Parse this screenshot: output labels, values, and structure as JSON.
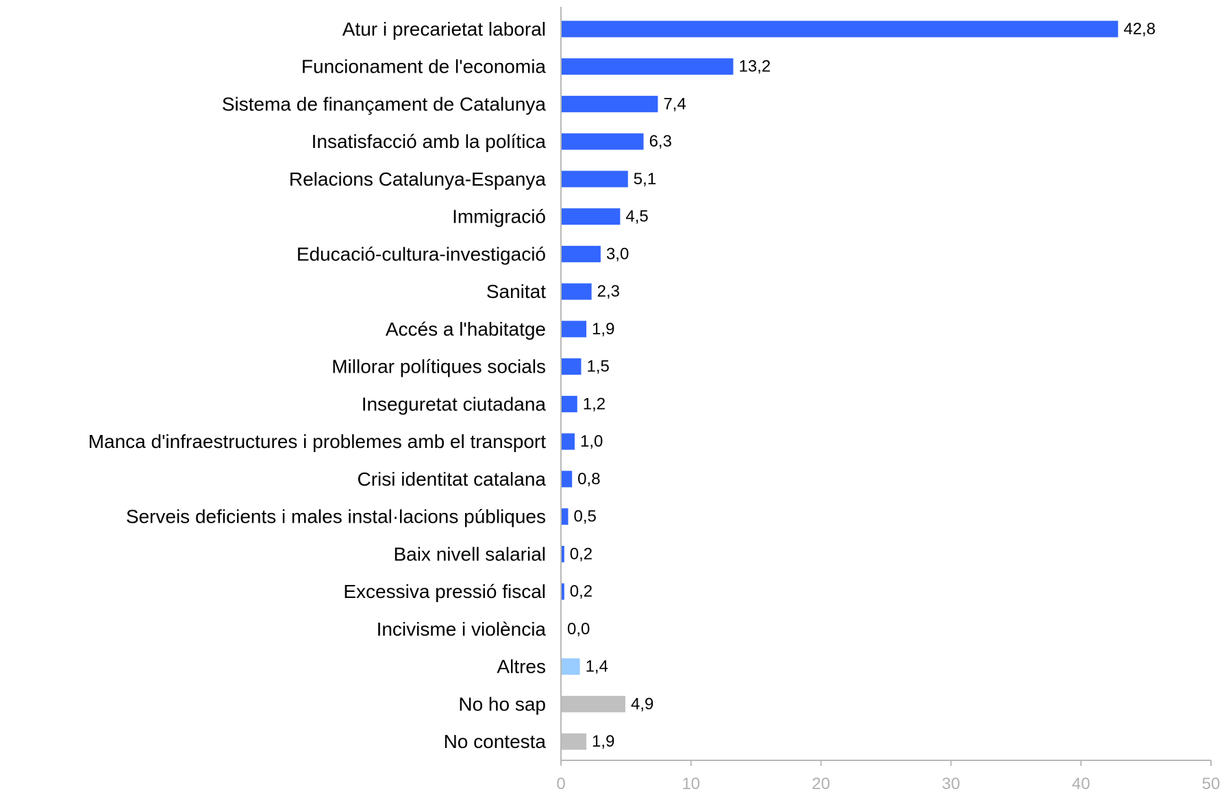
{
  "chart_data": {
    "type": "bar",
    "orientation": "horizontal",
    "categories": [
      "Atur i precarietat laboral",
      "Funcionament de l'economia",
      "Sistema de finançament de Catalunya",
      "Insatisfacció amb la política",
      "Relacions Catalunya-Espanya",
      "Immigració",
      "Educació-cultura-investigació",
      "Sanitat",
      "Accés a l'habitatge",
      "Millorar polítiques socials",
      "Inseguretat ciutadana",
      "Manca d'infraestructures i problemes amb el transport",
      "Crisi identitat catalana",
      "Serveis deficients i males instal·lacions públiques",
      "Baix nivell salarial",
      "Excessiva pressió fiscal",
      "Incivisme i violència",
      "Altres",
      "No ho sap",
      "No contesta"
    ],
    "values": [
      42.8,
      13.2,
      7.4,
      6.3,
      5.1,
      4.5,
      3.0,
      2.3,
      1.9,
      1.5,
      1.2,
      1.0,
      0.8,
      0.5,
      0.2,
      0.2,
      0.0,
      1.4,
      4.9,
      1.9
    ],
    "value_labels": [
      "42,8",
      "13,2",
      "7,4",
      "6,3",
      "5,1",
      "4,5",
      "3,0",
      "2,3",
      "1,9",
      "1,5",
      "1,2",
      "1,0",
      "0,8",
      "0,5",
      "0,2",
      "0,2",
      "0,0",
      "1,4",
      "4,9",
      "1,9"
    ],
    "bar_colors": [
      "#3366ff",
      "#3366ff",
      "#3366ff",
      "#3366ff",
      "#3366ff",
      "#3366ff",
      "#3366ff",
      "#3366ff",
      "#3366ff",
      "#3366ff",
      "#3366ff",
      "#3366ff",
      "#3366ff",
      "#3366ff",
      "#3366ff",
      "#3366ff",
      "#3366ff",
      "#99ccff",
      "#c0c0c0",
      "#c0c0c0"
    ],
    "xlim": [
      0,
      50
    ],
    "xticks": [
      0,
      10,
      20,
      30,
      40,
      50
    ],
    "xtick_labels": [
      "0",
      "10",
      "20",
      "30",
      "40",
      "50"
    ],
    "grid": false,
    "legend": "none"
  }
}
